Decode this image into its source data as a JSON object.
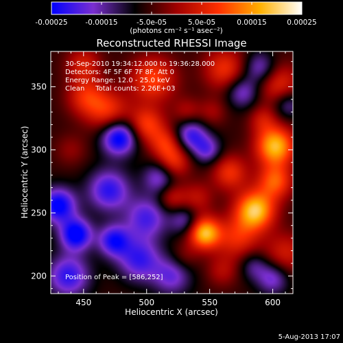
{
  "chart_data": {
    "type": "heatmap",
    "title": "Reconstructed RHESSI Image",
    "xlabel": "Heliocentric X (arcsec)",
    "ylabel": "Heliocentric Y (arcsec)",
    "xlim": [
      424,
      616
    ],
    "ylim": [
      186,
      378
    ],
    "x_ticks": [
      450,
      500,
      550,
      600
    ],
    "y_ticks": [
      200,
      250,
      300,
      350
    ],
    "colorbar": {
      "range": [
        -0.00025,
        0.00025
      ],
      "tick_labels": [
        "-0.00025",
        "-0.00015",
        "-5.0e-05",
        "5.0e-05",
        "0.00015",
        "0.00025"
      ],
      "unit_label": "(photons cm⁻² s⁻¹ asec⁻²)",
      "colors": [
        "#0000ff",
        "#7a2fd0",
        "#000000",
        "#a00000",
        "#ff3000",
        "#ffb000",
        "#ffffff"
      ]
    },
    "annotations": [
      "30-Sep-2010 19:34:12.000 to 19:36:28.000",
      "Detectors: 4F 5F 6F 7F 8F, Att 0",
      "Energy Range: 12.0 - 25.0 keV",
      "Clean     Total counts: 2.26E+03",
      "Position of Peak = [586,252]"
    ],
    "blobs": [
      {
        "x": 586,
        "y": 252,
        "v": 0.00025,
        "s": 11
      },
      {
        "x": 546,
        "y": 234,
        "v": 0.00024,
        "s": 9
      },
      {
        "x": 602,
        "y": 303,
        "v": 0.00024,
        "s": 11
      },
      {
        "x": 602,
        "y": 275,
        "v": 0.00016,
        "s": 10
      },
      {
        "x": 572,
        "y": 230,
        "v": 0.00012,
        "s": 12
      },
      {
        "x": 566,
        "y": 282,
        "v": 0.00013,
        "s": 10
      },
      {
        "x": 540,
        "y": 262,
        "v": 8e-05,
        "s": 9
      },
      {
        "x": 610,
        "y": 218,
        "v": 0.0001,
        "s": 12
      },
      {
        "x": 522,
        "y": 290,
        "v": 0.00012,
        "s": 9
      },
      {
        "x": 520,
        "y": 262,
        "v": 9e-05,
        "s": 8
      },
      {
        "x": 500,
        "y": 320,
        "v": 0.00014,
        "s": 10
      },
      {
        "x": 515,
        "y": 305,
        "v": 0.00012,
        "s": 9
      },
      {
        "x": 470,
        "y": 330,
        "v": 0.00013,
        "s": 12
      },
      {
        "x": 452,
        "y": 342,
        "v": 0.00012,
        "s": 11
      },
      {
        "x": 505,
        "y": 356,
        "v": 0.00015,
        "s": 13
      },
      {
        "x": 562,
        "y": 364,
        "v": 0.00013,
        "s": 12
      },
      {
        "x": 605,
        "y": 352,
        "v": 0.00012,
        "s": 12
      },
      {
        "x": 592,
        "y": 324,
        "v": 8e-05,
        "s": 8
      },
      {
        "x": 450,
        "y": 368,
        "v": 0.0001,
        "s": 10
      },
      {
        "x": 552,
        "y": 330,
        "v": 6e-05,
        "s": 8
      },
      {
        "x": 532,
        "y": 330,
        "v": 7e-05,
        "s": 8
      },
      {
        "x": 440,
        "y": 300,
        "v": 5e-05,
        "s": 9
      },
      {
        "x": 560,
        "y": 204,
        "v": 7e-05,
        "s": 9
      },
      {
        "x": 530,
        "y": 215,
        "v": 5e-05,
        "s": 8
      },
      {
        "x": 478,
        "y": 310,
        "v": -0.00022,
        "s": 10
      },
      {
        "x": 430,
        "y": 256,
        "v": -0.0002,
        "s": 10
      },
      {
        "x": 444,
        "y": 233,
        "v": -0.00021,
        "s": 9
      },
      {
        "x": 474,
        "y": 228,
        "v": -0.00017,
        "s": 9
      },
      {
        "x": 470,
        "y": 268,
        "v": -0.00016,
        "s": 12
      },
      {
        "x": 494,
        "y": 213,
        "v": -0.00015,
        "s": 12
      },
      {
        "x": 500,
        "y": 246,
        "v": -0.00014,
        "s": 12
      },
      {
        "x": 438,
        "y": 200,
        "v": -0.00016,
        "s": 12
      },
      {
        "x": 535,
        "y": 312,
        "v": -0.00015,
        "s": 9
      },
      {
        "x": 548,
        "y": 300,
        "v": -0.00012,
        "s": 8
      },
      {
        "x": 510,
        "y": 278,
        "v": -0.00012,
        "s": 9
      },
      {
        "x": 530,
        "y": 244,
        "v": -0.0001,
        "s": 8
      },
      {
        "x": 576,
        "y": 346,
        "v": -0.00012,
        "s": 9
      },
      {
        "x": 590,
        "y": 365,
        "v": -0.00012,
        "s": 9
      },
      {
        "x": 520,
        "y": 200,
        "v": -0.00012,
        "s": 11
      },
      {
        "x": 612,
        "y": 336,
        "v": -0.0001,
        "s": 8
      },
      {
        "x": 600,
        "y": 198,
        "v": -0.00012,
        "s": 9
      },
      {
        "x": 585,
        "y": 208,
        "v": -8e-05,
        "s": 8
      }
    ]
  },
  "footer": {
    "date": "5-Aug-2013 17:07"
  }
}
